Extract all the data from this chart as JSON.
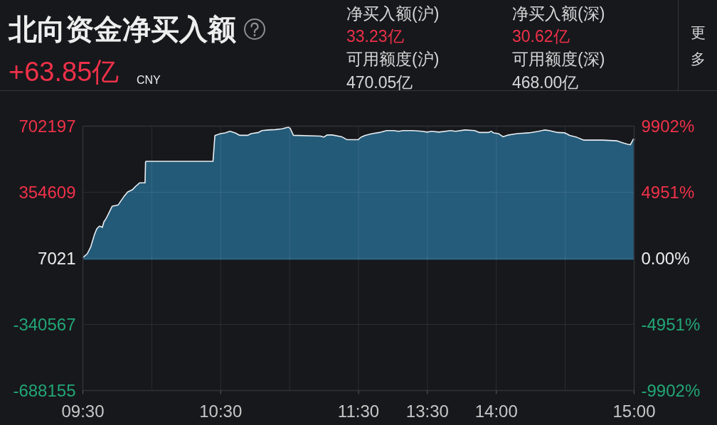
{
  "chart_data": [
    {
      "type": "area",
      "title": "北向资金净买入额",
      "subtitle": "+63.85亿",
      "annotations": [
        "CNY",
        "净买入额(沪)",
        "33.23亿",
        "净买入额(深)",
        "30.62亿",
        "可用额度(沪)",
        "470.05亿",
        "可用额度(深)",
        "468.00亿",
        "更多"
      ],
      "x": [
        9.5,
        9.535,
        9.561,
        9.587,
        9.604,
        9.621,
        9.644,
        9.656,
        9.673,
        9.69,
        9.716,
        9.733,
        9.759,
        9.776,
        9.802,
        9.828,
        9.863,
        9.888,
        9.914,
        9.955,
        9.959,
        10.448,
        10.462,
        10.5,
        10.534,
        10.568,
        10.603,
        10.637,
        10.697,
        10.723,
        10.775,
        10.801,
        10.844,
        10.896,
        10.947,
        10.99,
        11.002,
        11.025,
        11.223,
        11.248,
        11.274,
        11.309,
        11.378,
        11.415,
        11.5
      ],
      "series": [
        {
          "color": "#235a78",
          "values": [
            7000,
            29000,
            66000,
            129000,
            160000,
            173000,
            166000,
            197000,
            216000,
            241000,
            279000,
            281000,
            285000,
            304000,
            331000,
            354000,
            366000,
            385000,
            401000,
            401000,
            514000,
            514000,
            651000,
            660000,
            664000,
            672000,
            664000,
            651000,
            651000,
            660000,
            666000,
            676000,
            679000,
            681000,
            685000,
            694000,
            688000,
            651000,
            647000,
            641000,
            653000,
            653000,
            643000,
            628000,
            628000
          ]
        }
      ],
      "xlim": [
        9.5,
        11.5
      ],
      "xticks": [
        {
          "value": 9.5,
          "label": "09:30"
        },
        {
          "value": 10,
          "label": null
        },
        {
          "value": 10.5,
          "label": "10:30"
        },
        {
          "value": 11,
          "label": null
        },
        {
          "value": 11.5,
          "label": "11:30"
        }
      ],
      "ylim": [
        -688155,
        702197
      ],
      "yticks": [
        702197,
        354609,
        7021,
        -340567,
        -688155
      ],
      "grid": true
    },
    {
      "type": "area",
      "x": [
        13.0,
        13.019,
        13.05,
        13.101,
        13.153,
        13.205,
        13.256,
        13.291,
        13.325,
        13.394,
        13.463,
        13.497,
        13.532,
        13.584,
        13.669,
        13.704,
        13.773,
        13.842,
        13.876,
        13.945,
        13.962,
        13.979,
        14.014,
        14.049,
        14.083,
        14.152,
        14.238,
        14.307,
        14.35,
        14.384,
        14.444,
        14.496,
        14.53,
        14.582,
        14.634,
        14.668,
        14.772,
        14.875,
        14.909,
        14.952,
        14.975,
        15.0
      ],
      "series": [
        {
          "color": "#255c7b",
          "values": [
            628000,
            641000,
            651000,
            660000,
            666000,
            676000,
            676000,
            672000,
            676000,
            676000,
            672000,
            668000,
            672000,
            668000,
            676000,
            672000,
            679000,
            676000,
            666000,
            666000,
            672000,
            664000,
            660000,
            643000,
            652000,
            660000,
            664000,
            672000,
            679000,
            676000,
            666000,
            664000,
            651000,
            641000,
            626000,
            626000,
            626000,
            622000,
            613000,
            604000,
            601000,
            635000
          ]
        }
      ],
      "xlim": [
        13,
        15
      ],
      "xticks": [
        {
          "value": 13.5,
          "label": "13:30"
        },
        {
          "value": 14,
          "label": "14:00"
        },
        {
          "value": 14.5,
          "label": null
        },
        {
          "value": 15,
          "label": "15:00"
        }
      ],
      "ylim": [
        -688155,
        702197
      ],
      "y2lim": [
        -9902,
        9902
      ],
      "y2ticks": [
        {
          "value": 9902,
          "label": "9902%"
        },
        {
          "value": 4951,
          "label": "4951%"
        },
        {
          "value": 0,
          "label": "0.00%"
        },
        {
          "value": -4951,
          "label": "-4951%"
        },
        {
          "value": -9902,
          "label": "-9902%"
        }
      ],
      "grid": true
    }
  ]
}
